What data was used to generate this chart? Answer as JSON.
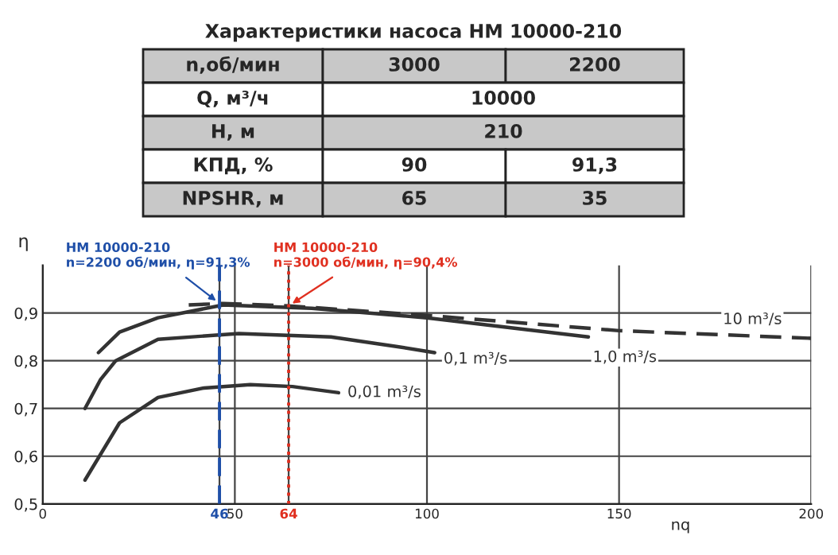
{
  "chart_data": {
    "type": "line",
    "title": "Характеристики насоса НМ 10000-210",
    "xlabel": "nq",
    "ylabel": "η",
    "xlim": [
      0,
      200
    ],
    "ylim": [
      0.5,
      1.0
    ],
    "xticks": [
      0,
      46,
      50,
      64,
      100,
      150,
      200
    ],
    "yticks": [
      {
        "value": 0.5,
        "label": "0,5"
      },
      {
        "value": 0.6,
        "label": "0,6"
      },
      {
        "value": 0.7,
        "label": "0,7"
      },
      {
        "value": 0.8,
        "label": "0,8"
      },
      {
        "value": 0.9,
        "label": "0,9"
      }
    ],
    "grid": true,
    "marker": "none",
    "series": [
      {
        "name": "0,01 m³/s",
        "color": "#333333",
        "line_style": "solid",
        "x": [
          11,
          20,
          30,
          42,
          54,
          65,
          77
        ],
        "values": [
          0.55,
          0.67,
          0.723,
          0.743,
          0.75,
          0.746,
          0.733
        ]
      },
      {
        "name": "0,1 m³/s",
        "color": "#333333",
        "line_style": "solid",
        "x": [
          11,
          15,
          19,
          30,
          51,
          75,
          92,
          102
        ],
        "values": [
          0.7,
          0.76,
          0.8,
          0.845,
          0.857,
          0.85,
          0.83,
          0.817
        ]
      },
      {
        "name": "1,0 m³/s",
        "color": "#333333",
        "line_style": "solid",
        "x": [
          14.5,
          20,
          30,
          47,
          70,
          100,
          142
        ],
        "values": [
          0.817,
          0.86,
          0.89,
          0.917,
          0.91,
          0.89,
          0.85
        ]
      },
      {
        "name": "10 m³/s",
        "color": "#333333",
        "line_style": "dashed",
        "x": [
          38,
          47,
          64,
          100,
          150,
          200
        ],
        "values": [
          0.917,
          0.92,
          0.915,
          0.895,
          0.863,
          0.847
        ]
      }
    ],
    "ref_lines": [
      {
        "axis": "x",
        "value": 46,
        "color": "#1f4fa8",
        "line_style": "dashed"
      },
      {
        "axis": "x",
        "value": 64,
        "color": "#e03020",
        "line_style": "dotted"
      }
    ],
    "annotations": [
      {
        "text": "НМ 10000-210\nn=2200 об/мин, η=91,3%",
        "x": 46,
        "y": 0.92
      },
      {
        "text": "НМ 10000-210\nn=3000 об/мин, η=90,4%",
        "x": 64,
        "y": 0.915
      },
      "n,об/мин",
      "3000",
      "2200",
      "Q, м³/ч",
      "10000",
      "H, м",
      "210",
      "КПД, %",
      "90",
      "91,3",
      "NPSHR, м",
      "65",
      "35"
    ]
  }
}
